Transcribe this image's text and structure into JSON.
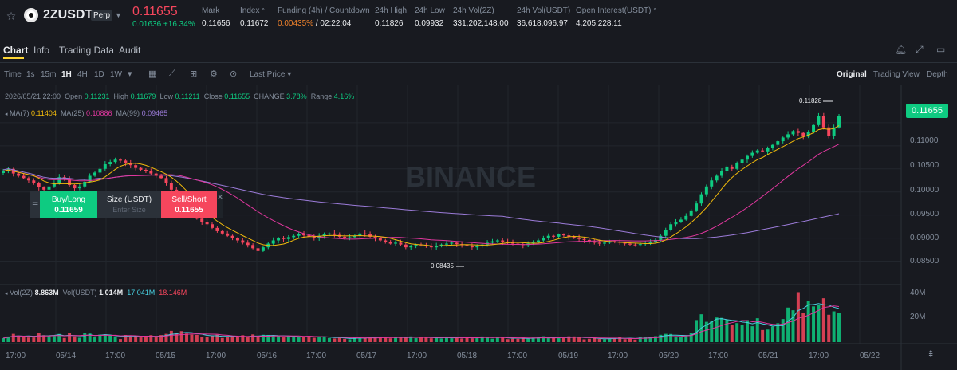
{
  "header": {
    "symbol": "2ZUSDT",
    "badge": "Perp",
    "last_price": "0.11655",
    "change": "0.01636 +16.34%",
    "stats": [
      {
        "label": "Mark",
        "value": "0.11656"
      },
      {
        "label": "Index",
        "value": "0.11672"
      },
      {
        "label": "Funding (4h) / Countdown",
        "value_a": "0.00435%",
        "value_b": "/ 02:22:04"
      },
      {
        "label": "24h High",
        "value": "0.11826"
      },
      {
        "label": "24h Low",
        "value": "0.09932"
      },
      {
        "label": "24h Vol(2Z)",
        "value": "331,202,148.00"
      },
      {
        "label": "24h Vol(USDT)",
        "value": "36,618,096.97"
      },
      {
        "label": "Open Interest(USDT)",
        "value": "4,205,228.11"
      }
    ]
  },
  "tabs": [
    "Chart",
    "Info",
    "Trading Data",
    "Audit"
  ],
  "toolbar": {
    "time_label": "Time",
    "intervals": [
      "1s",
      "15m",
      "1H",
      "4H",
      "1D",
      "1W"
    ],
    "active_interval": "1H",
    "price_type": "Last Price",
    "views": [
      "Original",
      "Trading View",
      "Depth"
    ],
    "active_view": "Original"
  },
  "legend": {
    "date": "2026/05/21 22:00",
    "open_label": "Open",
    "open": "0.11231",
    "high_label": "High",
    "high": "0.11679",
    "low_label": "Low",
    "low": "0.11211",
    "close_label": "Close",
    "close": "0.11655",
    "change_label": "CHANGE",
    "change": "3.78%",
    "range_label": "Range",
    "range": "4.16%",
    "ma7_label": "MA(7)",
    "ma7": "0.11404",
    "ma25_label": "MA(25)",
    "ma25": "0.10886",
    "ma99_label": "MA(99)",
    "ma99": "0.09465",
    "vol_label": "Vol(2Z)",
    "vol": "8.863M",
    "volusdt_label": "Vol(USDT)",
    "volusdt": "1.014M",
    "vol_ma1": "17.041M",
    "vol_ma2": "18.146M"
  },
  "order": {
    "buy_label": "Buy/Long",
    "buy_price": "0.11659",
    "size_label": "Size (USDT)",
    "size_placeholder": "Enter Size",
    "sell_label": "Sell/Short",
    "sell_price": "0.11655"
  },
  "watermark": "BINANCE",
  "price_axis": [
    "0.11500",
    "0.11000",
    "0.10500",
    "0.10000",
    "0.09500",
    "0.09000",
    "0.08500"
  ],
  "current_price_tag": "0.11655",
  "high_marker": "0.11828",
  "low_marker": "0.08435",
  "volume_axis": [
    "40M",
    "20M"
  ],
  "time_axis": [
    "17:00",
    "05/14",
    "17:00",
    "05/15",
    "17:00",
    "05/16",
    "17:00",
    "05/17",
    "17:00",
    "05/18",
    "17:00",
    "05/19",
    "17:00",
    "05/20",
    "17:00",
    "05/21",
    "17:00",
    "05/22"
  ],
  "colors": {
    "up": "#0ecb81",
    "down": "#f6465d",
    "ma7": "#f0b90b",
    "ma25": "#e0379e",
    "ma99": "#9b7bd8",
    "bg": "#181a20"
  },
  "chart_data": {
    "type": "candlestick",
    "interval": "1H",
    "price_range": [
      0.0825,
      0.12
    ],
    "volume_range": [
      0,
      45000000
    ],
    "closes": [
      0.1045,
      0.105,
      0.104,
      0.1035,
      0.103,
      0.1025,
      0.102,
      0.101,
      0.1005,
      0.1012,
      0.102,
      0.1032,
      0.1028,
      0.1015,
      0.1008,
      0.1012,
      0.1022,
      0.1035,
      0.1042,
      0.105,
      0.106,
      0.1065,
      0.107,
      0.1068,
      0.1062,
      0.1058,
      0.1052,
      0.1048,
      0.1045,
      0.104,
      0.1035,
      0.103,
      0.102,
      0.1005,
      0.099,
      0.0975,
      0.0962,
      0.095,
      0.0942,
      0.0935,
      0.093,
      0.0922,
      0.0915,
      0.091,
      0.0905,
      0.09,
      0.0895,
      0.089,
      0.0885,
      0.0878,
      0.0872,
      0.088,
      0.0888,
      0.0895,
      0.09,
      0.0898,
      0.0902,
      0.0905,
      0.0908,
      0.0906,
      0.0903,
      0.09,
      0.0905,
      0.0908,
      0.091,
      0.0907,
      0.0903,
      0.09,
      0.0902,
      0.0905,
      0.091,
      0.0908,
      0.0903,
      0.09,
      0.0895,
      0.0892,
      0.0888,
      0.089,
      0.0886,
      0.088,
      0.0883,
      0.0886,
      0.0885,
      0.0882,
      0.088,
      0.0883,
      0.0886,
      0.0888,
      0.089,
      0.0887,
      0.0885,
      0.0882,
      0.088,
      0.0883,
      0.0886,
      0.089,
      0.0893,
      0.0895,
      0.0892,
      0.089,
      0.0888,
      0.0887,
      0.0885,
      0.0888,
      0.0891,
      0.0895,
      0.09,
      0.0905,
      0.0903,
      0.0908,
      0.0906,
      0.0903,
      0.09,
      0.0898,
      0.0896,
      0.0893,
      0.089,
      0.0888,
      0.089,
      0.0893,
      0.0892,
      0.089,
      0.0888,
      0.0886,
      0.0885,
      0.0887,
      0.0889,
      0.0892,
      0.0896,
      0.0905,
      0.0918,
      0.093,
      0.0935,
      0.094,
      0.0948,
      0.096,
      0.0975,
      0.0995,
      0.1012,
      0.1025,
      0.1035,
      0.1045,
      0.1055,
      0.105,
      0.1062,
      0.107,
      0.1078,
      0.1085,
      0.109,
      0.1088,
      0.1095,
      0.1102,
      0.111,
      0.1118,
      0.1125,
      0.1132,
      0.1128,
      0.112,
      0.113,
      0.1145,
      0.1165,
      0.114,
      0.1122,
      0.114,
      0.1165
    ],
    "ma7_last": 0.11404,
    "ma25_last": 0.10886,
    "ma99_last": 0.09465
  }
}
